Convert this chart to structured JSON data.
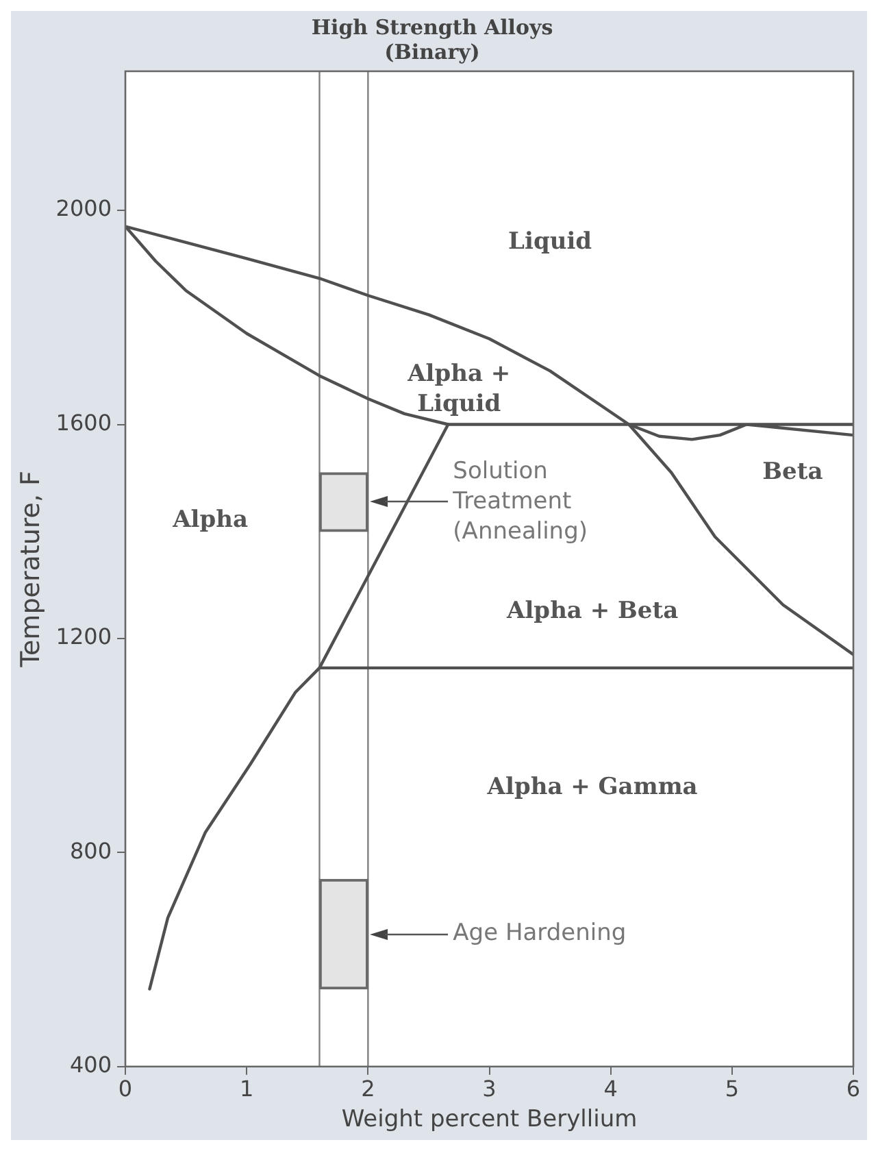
{
  "chart_data": {
    "type": "line",
    "title": "High Strength Alloys\n(Binary)",
    "xlabel": "Weight percent Beryllium",
    "ylabel": "Temperature, F",
    "xlim": [
      0,
      6
    ],
    "xticks": [
      0,
      1,
      2,
      3,
      4,
      5,
      6
    ],
    "ylim": [
      400,
      2260
    ],
    "yticks": [
      400,
      800,
      1200,
      1600,
      2000
    ],
    "grid": false,
    "legend": false,
    "marker": "none",
    "line_style": "solid",
    "series": [
      {
        "color": "#505050",
        "x": [
          6,
          4.15,
          2.66,
          2.3,
          2,
          1.6,
          1,
          0.5,
          0.25,
          0,
          0.5,
          1,
          1.6,
          2,
          2.5,
          3,
          3.5,
          4.15,
          4.4,
          4.67,
          4.9,
          5.12,
          6
        ],
        "values": [
          1600,
          1600,
          1600,
          1620,
          1648,
          1691,
          1770,
          1850,
          1905,
          1970,
          1940,
          1910,
          1873,
          1841,
          1805,
          1760,
          1700,
          1600,
          1578,
          1572,
          1580,
          1600,
          1580
        ]
      },
      {
        "color": "#505050",
        "x": [
          4.15,
          4.5,
          4.86,
          5.42,
          6
        ],
        "values": [
          1600,
          1510,
          1390,
          1263,
          1170
        ]
      },
      {
        "color": "#505050",
        "x": [
          2.66,
          1.6,
          6
        ],
        "values": [
          1600,
          1145,
          1145
        ]
      },
      {
        "color": "#505050",
        "x": [
          0.2,
          0.35,
          0.66,
          1.03,
          1.4,
          1.6
        ],
        "values": [
          545,
          678,
          838,
          965,
          1099,
          1145
        ]
      },
      {
        "type": "bar",
        "color": "#e4e4e4",
        "x": [
          1.8,
          1.8
        ],
        "base": [
          1400,
          545
        ],
        "values": [
          110,
          205
        ]
      }
    ],
    "ref_lines": [
      {
        "axis": "x",
        "value": 1.6,
        "color": "#808080"
      },
      {
        "axis": "x",
        "value": 2,
        "color": "#808080"
      }
    ],
    "annotations": [
      "Liquid",
      "Alpha +\nLiquid",
      "Beta",
      "Alpha",
      "Alpha + Beta",
      "Alpha + Gamma",
      "Solution\nTreatment\n(Annealing)",
      "Age Hardening"
    ]
  }
}
